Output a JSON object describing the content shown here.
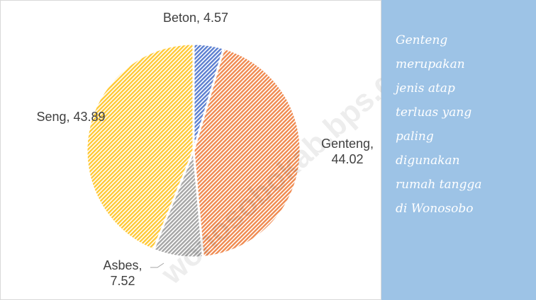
{
  "chart_data": {
    "type": "pie",
    "values": [
      4.57,
      44.02,
      7.52,
      43.89
    ],
    "value_labels": [
      "Beton, 4.57",
      "Genteng, 44.02",
      "Asbes, 7.52",
      "Seng, 43.89"
    ],
    "colors": [
      "#5b7fd0",
      "#f08a50",
      "#a6a6a6",
      "#ffc936"
    ],
    "watermark": "wonosobokab.bps.go.id"
  },
  "side_note": {
    "lines": [
      "Genteng",
      "merupakan",
      "jenis atap",
      "terluas yang",
      "paling",
      "digunakan",
      "rumah tangga",
      "di Wonosobo"
    ]
  }
}
